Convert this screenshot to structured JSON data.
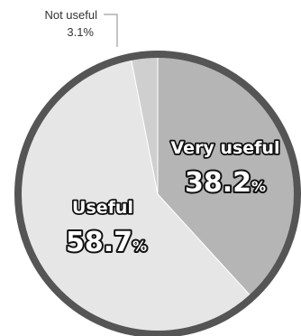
{
  "chart_data": {
    "type": "pie",
    "slices": [
      {
        "label": "Very useful",
        "value": 38.2,
        "value_text": "38.2",
        "unit": "%",
        "color": "#b5b5b5"
      },
      {
        "label": "Useful",
        "value": 58.7,
        "value_text": "58.7",
        "unit": "%",
        "color": "#e6e6e6"
      },
      {
        "label": "Not useful",
        "value": 3.1,
        "value_text": "3.1%",
        "unit": "%",
        "color": "#cfcfcf"
      }
    ],
    "start_angle_deg": 0,
    "direction": "clockwise",
    "ring_color": "#555555"
  }
}
